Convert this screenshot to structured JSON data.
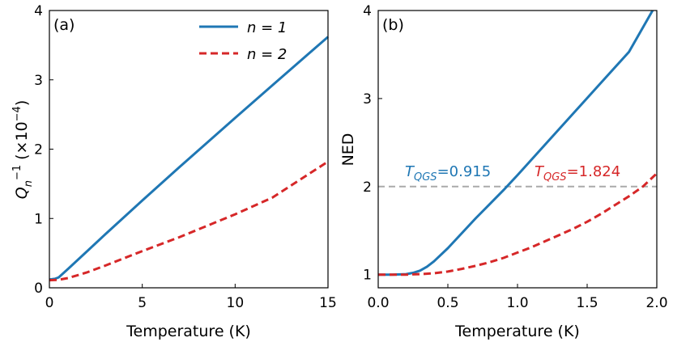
{
  "chart_data": [
    {
      "type": "line",
      "panel": "(a)",
      "xlabel": "Temperature (K)",
      "ylabel_main": "Q",
      "ylabel_sub": "n",
      "ylabel_sup": "−1",
      "ylabel_unit_pre": "(×10",
      "ylabel_unit_sup": "−4",
      "ylabel_unit_post": ")",
      "xlim": [
        0,
        15
      ],
      "ylim": [
        0,
        4
      ],
      "xticks": [
        0,
        5,
        10,
        15
      ],
      "yticks": [
        0,
        1,
        2,
        3,
        4
      ],
      "legend": {
        "placement": "top-right"
      },
      "series": [
        {
          "name": "n = 1",
          "legend_label": "n = 1",
          "color": "#1f77b4",
          "style": "solid",
          "x": [
            0,
            0.3,
            0.5,
            1,
            2,
            3,
            5,
            7,
            10,
            12,
            15
          ],
          "y": [
            0.12,
            0.13,
            0.15,
            0.27,
            0.52,
            0.77,
            1.26,
            1.74,
            2.45,
            2.92,
            3.62
          ]
        },
        {
          "name": "n = 2",
          "legend_label": "n = 2",
          "color": "#d62728",
          "style": "dashed",
          "x": [
            0,
            0.5,
            1,
            2,
            3,
            5,
            7,
            10,
            12,
            15
          ],
          "y": [
            0.11,
            0.115,
            0.14,
            0.22,
            0.32,
            0.53,
            0.73,
            1.06,
            1.3,
            1.82
          ]
        }
      ]
    },
    {
      "type": "line",
      "panel": "(b)",
      "xlabel": "Temperature (K)",
      "ylabel": "NED",
      "xlim": [
        0,
        2
      ],
      "ylim": [
        0.85,
        4
      ],
      "xticks": [
        "0.0",
        "0.5",
        "1.0",
        "1.5",
        "2.0"
      ],
      "xtick_values": [
        0,
        0.5,
        1.0,
        1.5,
        2.0
      ],
      "yticks": [
        1,
        2,
        3,
        4
      ],
      "reference_line": {
        "y": 2,
        "color": "#aaaaaa",
        "style": "dashed"
      },
      "series": [
        {
          "name": "n = 1",
          "color": "#1f77b4",
          "style": "solid",
          "x": [
            0,
            0.1,
            0.2,
            0.25,
            0.3,
            0.35,
            0.4,
            0.5,
            0.6,
            0.7,
            0.8,
            0.9,
            1.0,
            1.2,
            1.4,
            1.6,
            1.8,
            1.97
          ],
          "y": [
            1,
            1,
            1.005,
            1.02,
            1.045,
            1.09,
            1.15,
            1.3,
            1.47,
            1.64,
            1.8,
            1.96,
            2.13,
            2.48,
            2.83,
            3.18,
            3.53,
            4.0
          ]
        },
        {
          "name": "n = 2",
          "color": "#d62728",
          "style": "dashed",
          "x": [
            0,
            0.2,
            0.3,
            0.4,
            0.5,
            0.6,
            0.7,
            0.8,
            0.9,
            1.0,
            1.1,
            1.2,
            1.3,
            1.4,
            1.5,
            1.6,
            1.7,
            1.8,
            1.9,
            2.0
          ],
          "y": [
            1,
            1.0,
            1.005,
            1.015,
            1.035,
            1.065,
            1.1,
            1.14,
            1.19,
            1.25,
            1.31,
            1.38,
            1.45,
            1.52,
            1.6,
            1.69,
            1.79,
            1.89,
            2.0,
            2.15
          ]
        }
      ],
      "annotations": [
        {
          "pre": "T",
          "sub": "QGS",
          "post": "=0.915",
          "color": "#1f77b4"
        },
        {
          "pre": "T",
          "sub": "QGS",
          "post": "=1.824",
          "color": "#d62728"
        }
      ]
    }
  ]
}
